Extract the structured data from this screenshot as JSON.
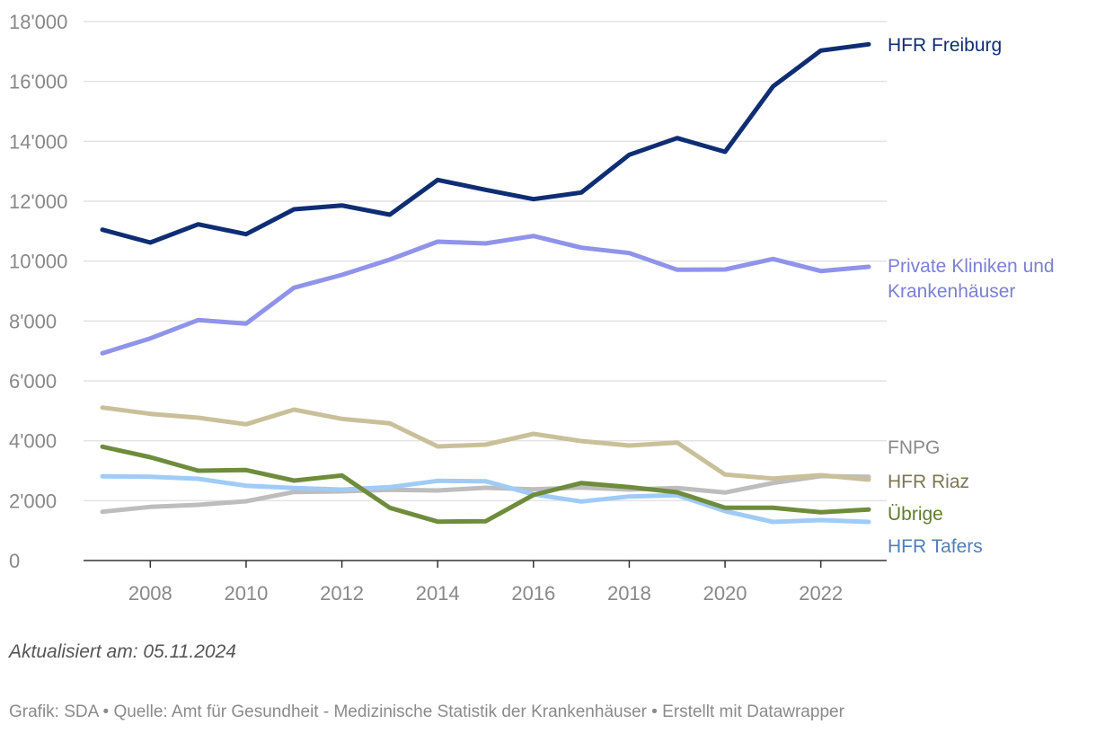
{
  "chart_data": {
    "type": "line",
    "x": [
      2007,
      2008,
      2009,
      2010,
      2011,
      2012,
      2013,
      2014,
      2015,
      2016,
      2017,
      2018,
      2019,
      2020,
      2021,
      2022,
      2023
    ],
    "xlim": [
      2007,
      2023
    ],
    "ylim": [
      0,
      18000
    ],
    "x_ticks": [
      2008,
      2010,
      2012,
      2014,
      2016,
      2018,
      2020,
      2022
    ],
    "x_tick_labels": [
      "2008",
      "2010",
      "2012",
      "2014",
      "2016",
      "2018",
      "2020",
      "2022"
    ],
    "y_ticks": [
      0,
      2000,
      4000,
      6000,
      8000,
      10000,
      12000,
      14000,
      16000,
      18000
    ],
    "y_tick_labels": [
      "0",
      "2'000",
      "4'000",
      "6'000",
      "8'000",
      "10'000",
      "12'000",
      "14'000",
      "16'000",
      "18'000"
    ],
    "grid": true,
    "legend": "direct labels at line ends (right)",
    "series": [
      {
        "name": "HFR Freiburg",
        "label_lines": [
          "HFR Freiburg"
        ],
        "color": "#0e2d73",
        "label_color": "#0e2d73",
        "values": [
          11050,
          10620,
          11230,
          10900,
          11730,
          11860,
          11550,
          12710,
          12380,
          12070,
          12290,
          13550,
          14110,
          13650,
          15830,
          17030,
          17240
        ]
      },
      {
        "name": "Private Kliniken und Krankenhäuser",
        "label_lines": [
          "Private Kliniken und",
          "Krankenhäuser"
        ],
        "color": "#8f93e9",
        "label_color": "#7b7fd6",
        "values": [
          6920,
          7420,
          8030,
          7910,
          9110,
          9540,
          10050,
          10650,
          10590,
          10840,
          10450,
          10270,
          9710,
          9720,
          10070,
          9670,
          9810
        ]
      },
      {
        "name": "FNPG",
        "label_lines": [
          "FNPG"
        ],
        "color": "#bdbdbd",
        "label_color": "#8a8a8a",
        "values": [
          1630,
          1790,
          1860,
          1980,
          2290,
          2310,
          2360,
          2340,
          2430,
          2380,
          2440,
          2370,
          2420,
          2270,
          2590,
          2820,
          2800
        ]
      },
      {
        "name": "HFR Riaz",
        "label_lines": [
          "HFR Riaz"
        ],
        "color": "#c9c09a",
        "label_color": "#7d7553",
        "values": [
          5110,
          4900,
          4770,
          4550,
          5040,
          4730,
          4580,
          3810,
          3870,
          4230,
          3990,
          3840,
          3940,
          2870,
          2740,
          2850,
          2700
        ]
      },
      {
        "name": "Übrige",
        "label_lines": [
          "Übrige"
        ],
        "color": "#6e8c3c",
        "label_color": "#5f7d2e",
        "values": [
          3800,
          3450,
          3000,
          3020,
          2670,
          2840,
          1760,
          1300,
          1310,
          2190,
          2590,
          2450,
          2280,
          1760,
          1760,
          1610,
          1700
        ]
      },
      {
        "name": "HFR Tafers",
        "label_lines": [
          "HFR Tafers"
        ],
        "color": "#9fcbf6",
        "label_color": "#4f7fb5",
        "values": [
          2810,
          2800,
          2730,
          2500,
          2420,
          2370,
          2450,
          2660,
          2650,
          2210,
          1970,
          2140,
          2180,
          1650,
          1290,
          1350,
          1290
        ]
      }
    ]
  },
  "footer": {
    "updated": "Aktualisiert am: 05.11.2024",
    "source": "Grafik: SDA • Quelle: Amt für Gesundheit - Medizinische Statistik der Krankenhäuser • Erstellt mit Datawrapper"
  }
}
